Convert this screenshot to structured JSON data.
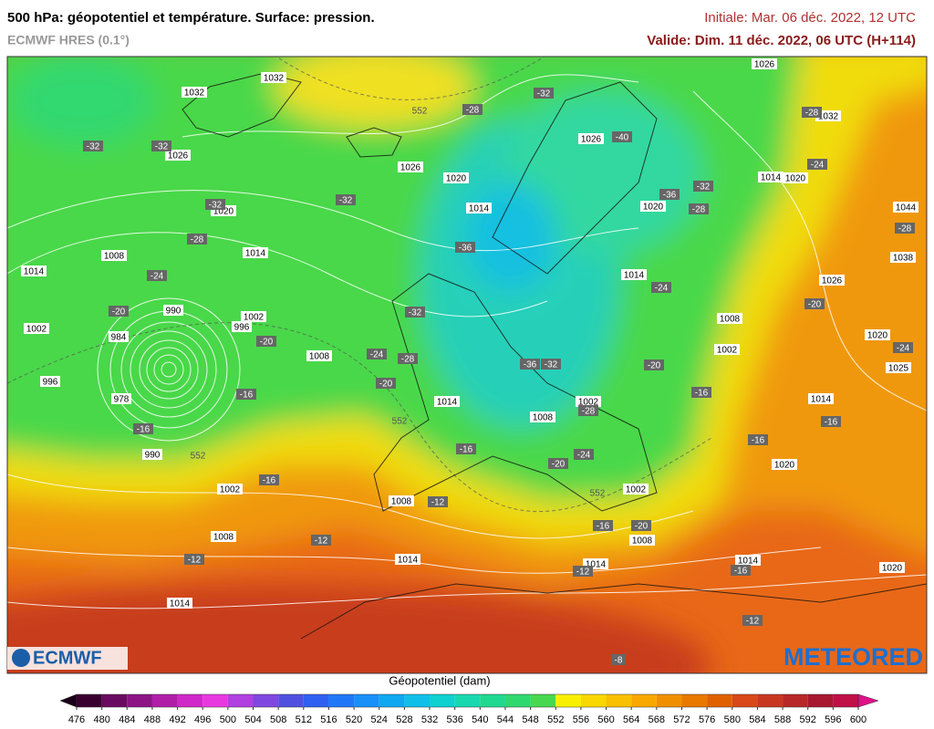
{
  "header": {
    "title": "500 hPa: géopotentiel et température. Surface: pression.",
    "model": "ECMWF HRES (0.1°)",
    "initial": "Initiale: Mar. 06 déc. 2022, 12 UTC",
    "valid": "Valide: Dim. 11 déc. 2022, 06 UTC (H+114)"
  },
  "map": {
    "pressure_labels": [
      "1032",
      "1032",
      "1026",
      "1026",
      "1020",
      "1014",
      "1020",
      "1014",
      "1008",
      "1014",
      "990",
      "1002",
      "996",
      "984",
      "1002",
      "1008",
      "996",
      "978",
      "990",
      "1002",
      "1014",
      "1008",
      "1002",
      "1008",
      "1002",
      "1008",
      "1014",
      "1014",
      "1014",
      "1008",
      "1014",
      "1020",
      "1020",
      "1014",
      "1002",
      "1008",
      "1026",
      "1038",
      "1044",
      "1020",
      "1014",
      "1032",
      "1026",
      "1026",
      "1020",
      "1014",
      "1020",
      "1025"
    ],
    "temperature_labels": [
      "-32",
      "-32",
      "-28",
      "-32",
      "-40",
      "-28",
      "-32",
      "-32",
      "-28",
      "-24",
      "-36",
      "-32",
      "-20",
      "-20",
      "-16",
      "-16",
      "-24",
      "-28",
      "-20",
      "-36",
      "-32",
      "-28",
      "-16",
      "-20",
      "-24",
      "-20",
      "-16",
      "-24",
      "-28",
      "-32",
      "-36",
      "-24",
      "-28",
      "-20",
      "-24",
      "-16",
      "-16",
      "-16",
      "-12",
      "-12",
      "-12",
      "-16",
      "-20",
      "-12",
      "-16",
      "-12",
      "-8"
    ],
    "contour_labels": [
      "552",
      "552",
      "552",
      "552"
    ]
  },
  "colorbar": {
    "label": "Géopotentiel (dam)",
    "ticks": [
      476,
      480,
      484,
      488,
      492,
      496,
      500,
      504,
      508,
      512,
      516,
      520,
      524,
      528,
      532,
      536,
      540,
      544,
      548,
      552,
      556,
      560,
      564,
      568,
      572,
      576,
      580,
      584,
      588,
      592,
      596,
      600
    ],
    "colors": [
      "#3a0030",
      "#6a0a60",
      "#8c1484",
      "#b01ea8",
      "#d028c8",
      "#e838e0",
      "#b040e0",
      "#8048e0",
      "#5050e0",
      "#3060f0",
      "#2078f8",
      "#1890f8",
      "#10a8f0",
      "#10c0e8",
      "#10d0d0",
      "#18d8b0",
      "#20d890",
      "#30d870",
      "#48d850",
      "#f8f000",
      "#f8d800",
      "#f8c000",
      "#f8a800",
      "#f09000",
      "#e87800",
      "#e06000",
      "#d84818",
      "#c83820",
      "#b82828",
      "#a81830",
      "#c01048"
    ],
    "under_color": "#1a0018",
    "over_color": "#e0108a"
  },
  "logos": {
    "left": "ECMWF",
    "right": "METEORED"
  }
}
